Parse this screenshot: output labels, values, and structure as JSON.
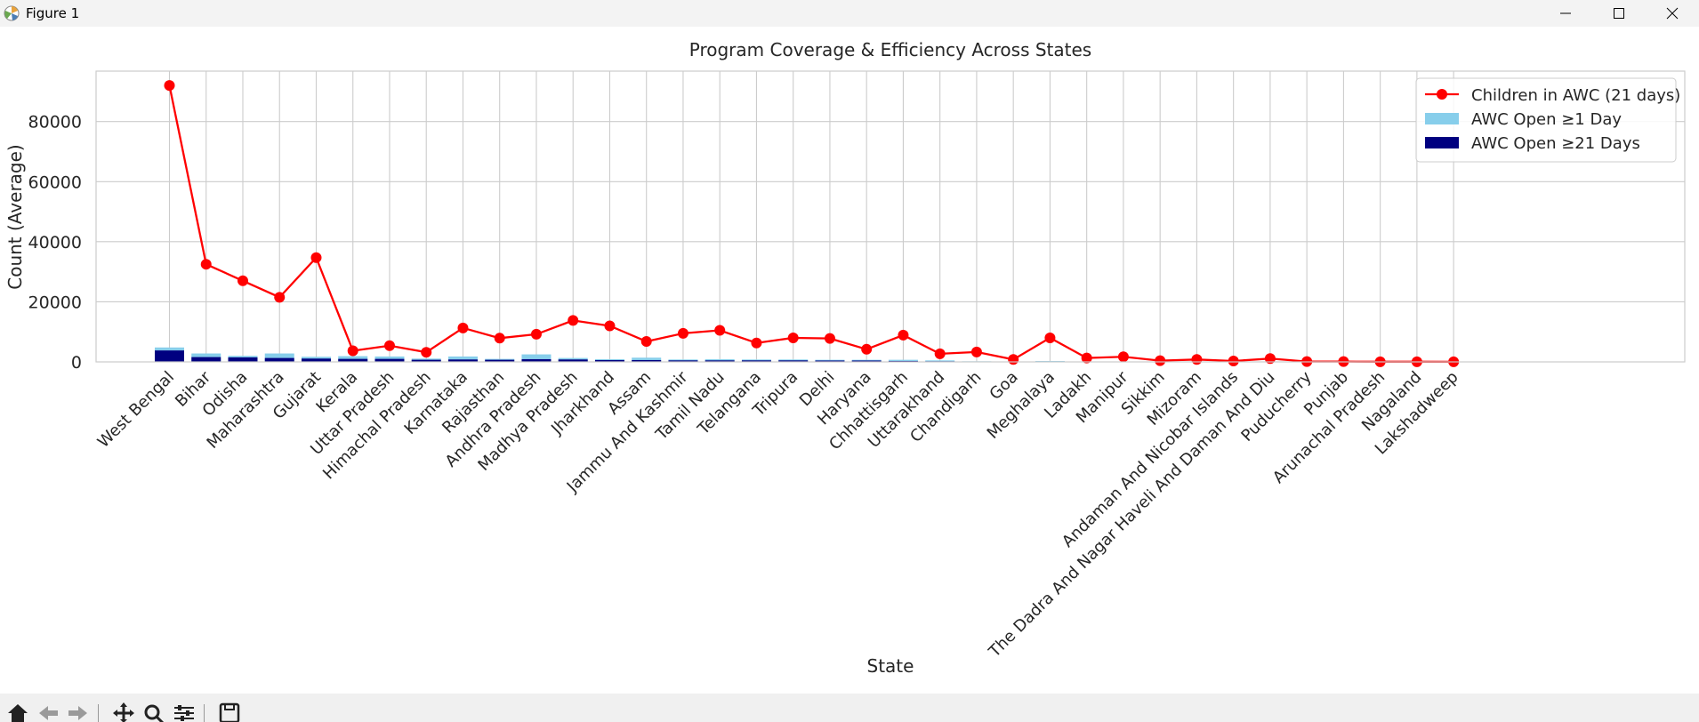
{
  "window": {
    "title": "Figure 1",
    "icons": [
      "matplotlib-icon",
      "minimize-icon",
      "maximize-icon",
      "close-icon"
    ]
  },
  "toolbar": {
    "icons": [
      "home-icon",
      "back-icon",
      "forward-icon",
      "pan-icon",
      "zoom-icon",
      "configure-icon",
      "save-icon"
    ]
  },
  "colors": {
    "line": "#ff0000",
    "bar_ge1": "#87ceeb",
    "bar_ge21": "#000080",
    "grid": "#cccccc",
    "frame": "#cccccc"
  },
  "chart_data": {
    "type": "bar",
    "title": "Program Coverage & Efficiency Across States",
    "xlabel": "State",
    "ylabel": "Count (Average)",
    "ylim": [
      0,
      92000
    ],
    "yticks": [
      0,
      20000,
      40000,
      60000,
      80000
    ],
    "grid": true,
    "legend_position": "top-right",
    "categories": [
      "West Bengal",
      "Bihar",
      "Odisha",
      "Maharashtra",
      "Gujarat",
      "Kerala",
      "Uttar Pradesh",
      "Himachal Pradesh",
      "Karnataka",
      "Rajasthan",
      "Andhra Pradesh",
      "Madhya Pradesh",
      "Jharkhand",
      "Assam",
      "Jammu And Kashmir",
      "Tamil Nadu",
      "Telangana",
      "Tripura",
      "Delhi",
      "Haryana",
      "Chhattisgarh",
      "Uttarakhand",
      "Chandigarh",
      "Goa",
      "Meghalaya",
      "Ladakh",
      "Manipur",
      "Sikkim",
      "Mizoram",
      "Andaman And Nicobar Islands",
      "The Dadra And Nagar Haveli And Daman And Diu",
      "Puducherry",
      "Punjab",
      "Arunachal Pradesh",
      "Nagaland",
      "Lakshadweep"
    ],
    "series": [
      {
        "name": "Children in AWC (21 days)",
        "kind": "line",
        "values": [
          92000,
          32500,
          27000,
          21500,
          34700,
          3700,
          5400,
          3200,
          11300,
          7900,
          9200,
          13800,
          12000,
          6800,
          9500,
          10500,
          6300,
          8000,
          7800,
          4200,
          8900,
          2700,
          3300,
          800,
          8000,
          1300,
          1700,
          400,
          800,
          300,
          1100,
          100,
          100,
          50,
          50,
          30
        ]
      },
      {
        "name": "AWC Open ≥1 Day",
        "kind": "bar",
        "values": [
          4800,
          2800,
          2000,
          2800,
          1700,
          1900,
          1800,
          1100,
          1800,
          1000,
          2500,
          1300,
          900,
          1400,
          800,
          900,
          800,
          800,
          700,
          700,
          700,
          500,
          200,
          150,
          300,
          100,
          150,
          80,
          80,
          60,
          60,
          40,
          40,
          30,
          30,
          20
        ]
      },
      {
        "name": "AWC Open ≥21 Days",
        "kind": "bar",
        "values": [
          3800,
          1600,
          1500,
          1300,
          1100,
          1000,
          1000,
          700,
          800,
          700,
          900,
          800,
          600,
          600,
          500,
          500,
          500,
          500,
          450,
          450,
          300,
          200,
          100,
          80,
          150,
          50,
          80,
          40,
          40,
          30,
          30,
          20,
          20,
          15,
          15,
          10
        ]
      }
    ]
  }
}
